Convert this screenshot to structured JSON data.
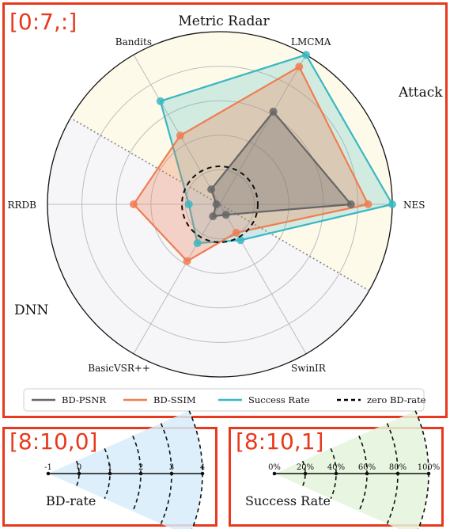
{
  "panels": {
    "main_tag": "[0:7,:]",
    "bd_tag": "[8:10,0]",
    "sr_tag": "[8:10,1]"
  },
  "chart_data": [
    {
      "type": "radar",
      "title": "Metric Radar",
      "axes": [
        "NES",
        "LMCMA",
        "Bandits",
        "RRDB",
        "BasicVSR++",
        "SwinIR"
      ],
      "axis_scale": "radius 0–1",
      "rings": [
        0.2,
        0.4,
        0.6,
        0.8
      ],
      "region_labels": [
        "Attack",
        "DNN"
      ],
      "series": [
        {
          "name": "BD-PSNR",
          "color": "#666666",
          "values": [
            0.76,
            0.62,
            0.1,
            0.02,
            0.08,
            0.07
          ]
        },
        {
          "name": "BD-SSIM",
          "color": "#f07d52",
          "values": [
            0.86,
            0.92,
            0.46,
            0.5,
            0.38,
            0.19
          ]
        },
        {
          "name": "Success Rate",
          "color": "#3bb7c1",
          "values": [
            1.0,
            1.0,
            0.69,
            0.18,
            0.26,
            0.24
          ]
        },
        {
          "name": "zero BD-rate",
          "color": "#000000",
          "style": "dashed circle",
          "values": [
            0.22,
            0.22,
            0.22,
            0.22,
            0.22,
            0.22
          ]
        }
      ],
      "legend_position": "bottom"
    },
    {
      "type": "scale",
      "title": "BD-rate",
      "ticks": [
        "-1",
        "0",
        "1",
        "2",
        "3",
        "4"
      ],
      "values": [
        -1,
        0,
        1,
        2,
        3,
        4
      ],
      "color": "#d6ecfa"
    },
    {
      "type": "scale",
      "title": "Success Rate",
      "ticks": [
        "0%",
        "20%",
        "40%",
        "60%",
        "80%",
        "100%"
      ],
      "values": [
        0,
        20,
        40,
        60,
        80,
        100
      ],
      "color": "#e4f4dc"
    }
  ]
}
